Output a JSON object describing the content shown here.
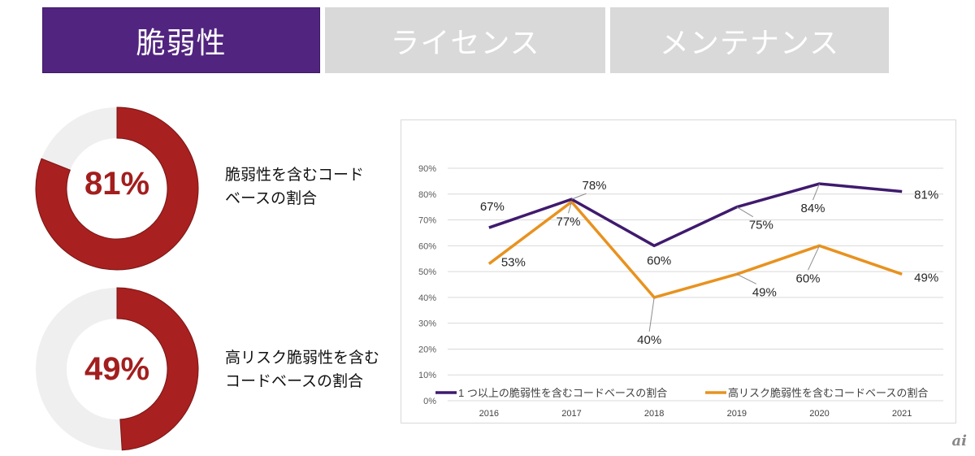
{
  "tabs": [
    {
      "label": "脆弱性",
      "active": true
    },
    {
      "label": "ライセンス",
      "active": false
    },
    {
      "label": "メンテナンス",
      "active": false
    }
  ],
  "colors": {
    "active_tab": "#51247f",
    "inactive_tab": "#d9d9d9",
    "donut_fill": "#a8201f",
    "donut_track": "#efefef",
    "series1": "#3f1a6e",
    "series2": "#e8921f"
  },
  "stats": [
    {
      "value_label": "81%",
      "fraction": 0.81,
      "description_line1": "脆弱性を含むコード",
      "description_line2": "ベースの割合"
    },
    {
      "value_label": "49%",
      "fraction": 0.49,
      "description_line1": "高リスク脆弱性を含む",
      "description_line2": "コードベースの割合"
    }
  ],
  "chart_data": {
    "type": "line",
    "title": "",
    "xlabel": "",
    "ylabel": "",
    "categories": [
      "2016",
      "2017",
      "2018",
      "2019",
      "2020",
      "2021"
    ],
    "ylim": [
      0,
      90
    ],
    "yticks": [
      "0%",
      "10%",
      "20%",
      "30%",
      "40%",
      "50%",
      "60%",
      "70%",
      "80%",
      "90%"
    ],
    "grid": true,
    "legend_position": "bottom",
    "series": [
      {
        "name": "1 つ以上の脆弱性を含むコードベースの割合",
        "values": [
          67,
          78,
          60,
          75,
          84,
          81
        ],
        "labels": [
          "67%",
          "78%",
          "60%",
          "75%",
          "84%",
          "81%"
        ]
      },
      {
        "name": "高リスク脆弱性を含むコードベースの割合",
        "values": [
          53,
          77,
          40,
          49,
          60,
          49
        ],
        "labels": [
          "53%",
          "77%",
          "40%",
          "49%",
          "60%",
          "49%"
        ]
      }
    ]
  },
  "watermark": "ai"
}
